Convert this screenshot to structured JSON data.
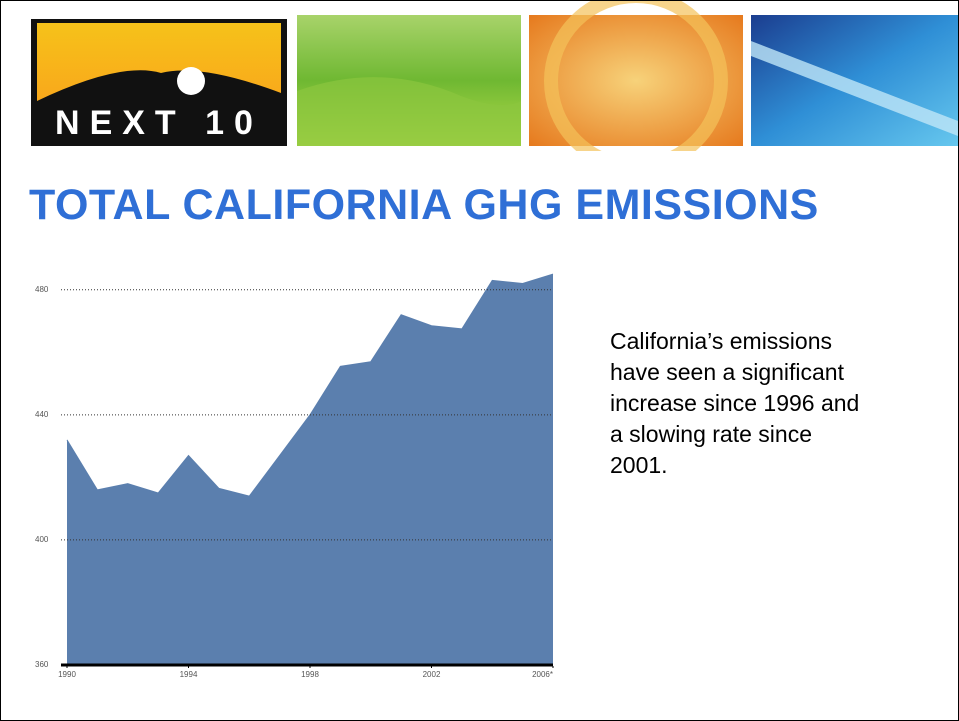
{
  "header": {
    "logo_text": "NEXT 10"
  },
  "description_lines": [
    "California’s emissions",
    "have seen a significant",
    "increase since 1996 and",
    "a slowing rate since",
    "2001."
  ],
  "chart_data": {
    "type": "area",
    "title": "TOTAL CALIFORNIA GHG EMISSIONS",
    "x": [
      1990,
      1991,
      1992,
      1993,
      1994,
      1995,
      1996,
      1997,
      1998,
      1999,
      2000,
      2001,
      2002,
      2003,
      2004,
      2005,
      2006
    ],
    "values": [
      432,
      416,
      418,
      415,
      427,
      416.5,
      414,
      427,
      440,
      455.5,
      457,
      472,
      468.5,
      467.5,
      483,
      482,
      485
    ],
    "color": "#5b7fae",
    "xlim": [
      1990,
      2006
    ],
    "xticks": [
      1990,
      1994,
      1998,
      2002,
      {
        "value": 2006,
        "label": "2006*"
      }
    ],
    "ylim": [
      360,
      486
    ],
    "yticks": [
      360,
      400,
      440,
      480
    ],
    "grid": true
  }
}
